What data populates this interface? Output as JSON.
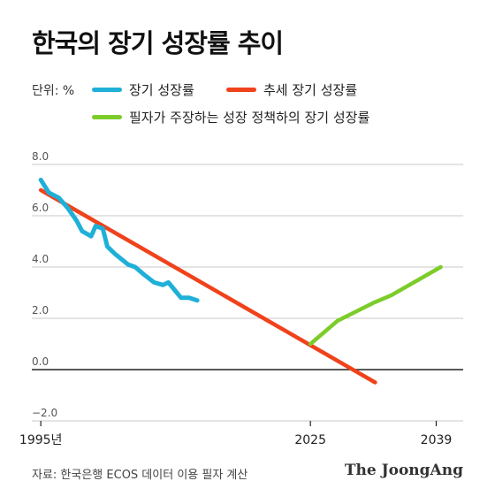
{
  "title": "한국의 장기 성장률 추이",
  "unit": "단위: %",
  "source": "자료: 한국은행 ECOS 데이터 이용 필자 계산",
  "brand": "The JoongAng",
  "colors": {
    "blue": "#1fb0d8",
    "red": "#f0421b",
    "green": "#7ccc2a",
    "grid": "#c8c8c8",
    "axis": "#222222",
    "tick": "#555555"
  },
  "chart_data": {
    "type": "line",
    "title": "한국의 장기 성장률 추이",
    "ylim": [
      -2,
      8
    ],
    "xlim": [
      1994,
      2042
    ],
    "yticks": [
      {
        "value": 8,
        "label": "8.0"
      },
      {
        "value": 6,
        "label": "6.0"
      },
      {
        "value": 4,
        "label": "4.0"
      },
      {
        "value": 2,
        "label": "2.0"
      },
      {
        "value": 0,
        "label": "0.0"
      },
      {
        "value": -2,
        "label": "−2.0"
      }
    ],
    "xticks": [
      {
        "value": 1995,
        "label": "1995년"
      },
      {
        "value": 2025,
        "label": "2025"
      },
      {
        "value": 2039,
        "label": "2039"
      }
    ],
    "grid": true,
    "legend": "top",
    "series": [
      {
        "name": "장기 성장률",
        "color": "#1fb0d8",
        "points": [
          [
            1995.0,
            7.4
          ],
          [
            1995.9,
            6.9
          ],
          [
            1997.0,
            6.7
          ],
          [
            1998.0,
            6.3
          ],
          [
            1999.0,
            5.8
          ],
          [
            1999.6,
            5.4
          ],
          [
            2000.6,
            5.2
          ],
          [
            2001.1,
            5.6
          ],
          [
            2001.9,
            5.5
          ],
          [
            2002.4,
            4.8
          ],
          [
            2003.3,
            4.5
          ],
          [
            2004.0,
            4.3
          ],
          [
            2004.7,
            4.1
          ],
          [
            2005.5,
            4.0
          ],
          [
            2006.5,
            3.7
          ],
          [
            2007.6,
            3.4
          ],
          [
            2008.6,
            3.3
          ],
          [
            2009.2,
            3.4
          ],
          [
            2009.9,
            3.1
          ],
          [
            2010.6,
            2.8
          ],
          [
            2011.5,
            2.8
          ],
          [
            2012.4,
            2.7
          ]
        ]
      },
      {
        "name": "추세 장기 성장률",
        "color": "#f0421b",
        "points": [
          [
            1995.0,
            7.0
          ],
          [
            2032.2,
            -0.5
          ]
        ]
      },
      {
        "name": "필자가 주장하는 성장 정책하의 장기 성장률",
        "color": "#7ccc2a",
        "points": [
          [
            2025.0,
            1.0
          ],
          [
            2028.0,
            1.9
          ],
          [
            2032.0,
            2.6
          ],
          [
            2034.0,
            2.9
          ],
          [
            2039.5,
            4.0
          ]
        ]
      }
    ]
  }
}
